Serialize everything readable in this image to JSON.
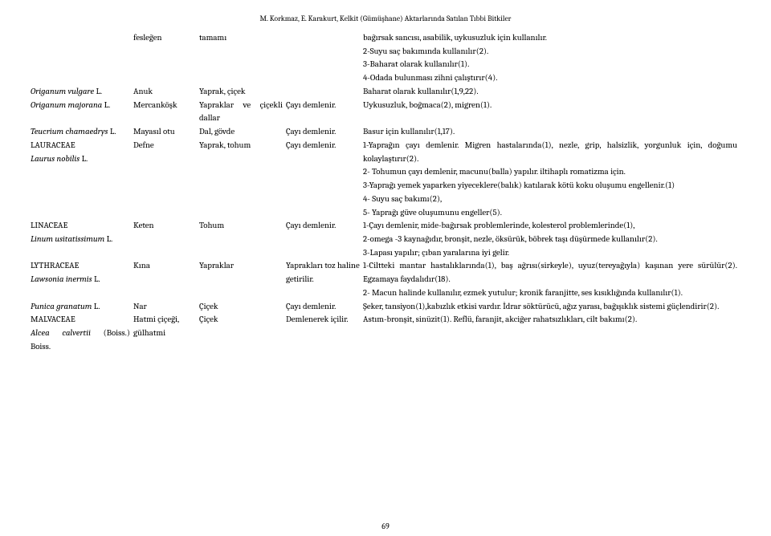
{
  "header": "M. Korkmaz, E. Karakurt, Kelkit (Gümüşhane) Aktarlarında Satılan Tıbbi Bitkiler",
  "page_number": "69",
  "rows": [
    {
      "c1": "",
      "c2": "fesleğen",
      "c3": "tamamı",
      "c4": "",
      "c5a": "bağırsak sancısı, asabilik, uykusuzluk için kullanılır.",
      "c5b": "2-Suyu saç bakımında kullanılır(2).",
      "c5c": "3-Baharat olarak kullanılır(1).",
      "c5d": "4-Odada bulunması zihni çalıştırır(4)."
    },
    {
      "c1i": "Origanum vulgare",
      "c1s": " L.",
      "c2": "Anuk",
      "c3": "Yaprak, çiçek",
      "c4": "",
      "c5": "Baharat olarak kullanılır(1,9,22)."
    },
    {
      "c1i": "Origanum majorana",
      "c1s": " L.",
      "c2": "Mercanköşk",
      "c3": "Yapraklar ve çiçekli dallar",
      "c4": "Çayı demlenir.",
      "c5": "Uykusuzluk, boğmaca(2), migren(1)."
    },
    {
      "c1i": "Teucrium chamaedrys",
      "c1s": " L.",
      "c2": "Mayasıl otu",
      "c3": "Dal, gövde",
      "c4": "Çayı demlenir.",
      "c5": "Basur için kullanılır(1,17)."
    },
    {
      "c1a": "LAURACEAE",
      "c1i": "Laurus nobilis",
      "c1s": " L.",
      "c2": "Defne",
      "c3": "Yaprak, tohum",
      "c4": "Çayı demlenir.",
      "c5a": "1-Yaprağın çayı demlenir. Migren hastalarında(1), nezle, grip, halsizlik, yorgunluk için, doğumu kolaylaştırır(2).",
      "c5b": "2- Tohumun çayı demlenir, macunu(balla) yapılır. iltihaplı romatizma için.",
      "c5c": "3-Yaprağı yemek yaparken yiyeceklere(balık) katılarak kötü koku oluşumu engellenir.(1)",
      "c5d": "4- Suyu saç bakımı(2),",
      "c5e": "5- Yaprağı güve oluşumunu engeller(5)."
    },
    {
      "c1a": "LINACEAE",
      "c1i": "Linum usitatissimum",
      "c1s": " L.",
      "c2": "Keten",
      "c3": "Tohum",
      "c4": "Çayı demlenir.",
      "c5a": "1-Çayı demlenir, mide-bağırsak problemlerinde, kolesterol problemlerinde(1),",
      "c5b": "2-omega -3 kaynağıdır, bronşit, nezle, öksürük, böbrek taşı düşürmede kullanılır(2).",
      "c5c": "3-Lapası yapılır; çıban yaralarına iyi gelir."
    },
    {
      "c1a": "LYTHRACEAE",
      "c1i": "Lawsonia inermis",
      "c1s": " L.",
      "c2": "Kına",
      "c3": "Yapraklar",
      "c4": "Yaprakları toz haline getirilir.",
      "c5a": "1-Ciltteki mantar hastalıklarında(1), baş ağrısı(sirkeyle), uyuz(tereyağıyla) kaşınan yere sürülür(2). Egzamaya faydalıdır(18).",
      "c5b": "2- Macun halinde kullanılır, ezmek yutulur; kronik faranjitte, ses kısıklığında kullanılır(1)."
    },
    {
      "c1i": "Punica granatum",
      "c1s": " L.",
      "c2": "Nar",
      "c3": "Çiçek",
      "c4": "Çayı demlenir.",
      "c5": "Şeker, tansiyon(1),kabızlık etkisi vardır. İdrar söktürücü, ağız yarası, bağışıklık sistemi güçlendirir(2)."
    },
    {
      "c1a": "MALVACEAE",
      "c1i": "Alcea calvertii",
      "c1s": " (Boiss.) Boiss.",
      "c2": "Hatmi çiçeği, gülhatmi",
      "c3": "Çiçek",
      "c4": "Demlenerek içilir.",
      "c5": "Astım-bronşit, sinüzit(1). Reflü, faranjit, akciğer rahatsızlıkları, cilt bakımı(2)."
    }
  ]
}
